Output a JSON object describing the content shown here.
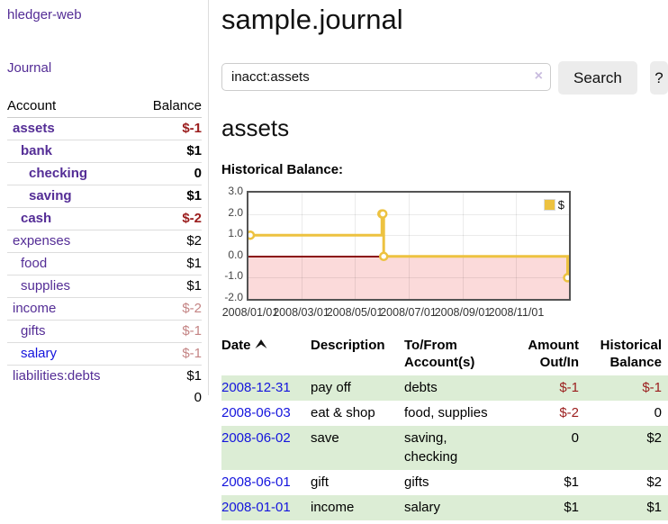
{
  "app": {
    "brand": "hledger-web",
    "nav": {
      "journal": "Journal"
    }
  },
  "colors": {
    "link_purple": "#542d96",
    "link_blue": "#1414dd",
    "negative_strong": "#9b1d1d",
    "negative_soft": "#c48484",
    "row_green": "#dcedd5",
    "series_gold": "#edc240"
  },
  "sidebar": {
    "header": {
      "account": "Account",
      "balance": "Balance"
    },
    "accounts": [
      {
        "name": "assets",
        "balance": "$-1",
        "depth": 0,
        "bold": true,
        "neg": "strong"
      },
      {
        "name": "bank",
        "balance": "$1",
        "depth": 1,
        "bold": true,
        "neg": "none"
      },
      {
        "name": "checking",
        "balance": "0",
        "depth": 2,
        "bold": true,
        "neg": "none"
      },
      {
        "name": "saving",
        "balance": "$1",
        "depth": 2,
        "bold": true,
        "neg": "none"
      },
      {
        "name": "cash",
        "balance": "$-2",
        "depth": 1,
        "bold": true,
        "neg": "strong"
      },
      {
        "name": "expenses",
        "balance": "$2",
        "depth": 0,
        "bold": false,
        "neg": "none"
      },
      {
        "name": "food",
        "balance": "$1",
        "depth": 1,
        "bold": false,
        "neg": "none"
      },
      {
        "name": "supplies",
        "balance": "$1",
        "depth": 1,
        "bold": false,
        "neg": "none"
      },
      {
        "name": "income",
        "balance": "$-2",
        "depth": 0,
        "bold": false,
        "neg": "soft"
      },
      {
        "name": "gifts",
        "balance": "$-1",
        "depth": 1,
        "bold": false,
        "neg": "soft"
      },
      {
        "name": "salary",
        "balance": "$-1",
        "depth": 1,
        "bold": false,
        "neg": "soft",
        "link": "blue"
      },
      {
        "name": "liabilities:debts",
        "balance": "$1",
        "depth": 0,
        "bold": false,
        "neg": "none"
      }
    ],
    "total": "0"
  },
  "header": {
    "title": "sample.journal"
  },
  "search": {
    "value": "inacct:assets",
    "clear_icon": "×",
    "button_label": "Search",
    "help_label": "?"
  },
  "account_page": {
    "title": "assets",
    "chart_label": "Historical Balance:"
  },
  "chart_data": {
    "type": "line",
    "step": true,
    "title": "Historical Balance:",
    "series": [
      {
        "name": "$",
        "color": "#edc240",
        "points": [
          {
            "date": "2008-01-01",
            "value": 1
          },
          {
            "date": "2008-06-01",
            "value": 2
          },
          {
            "date": "2008-06-02",
            "value": 2
          },
          {
            "date": "2008-06-03",
            "value": 0
          },
          {
            "date": "2008-12-31",
            "value": -1
          }
        ]
      }
    ],
    "x_range": [
      "2008-01-01",
      "2008-12-31"
    ],
    "x_ticks": [
      "2008/01/01",
      "2008/03/01",
      "2008/05/01",
      "2008/07/01",
      "2008/09/01",
      "2008/11/01"
    ],
    "y_ticks": [
      "3.0",
      "2.0",
      "1.0",
      "0.0",
      "-1.0",
      "-2.0"
    ],
    "ylim": [
      -2,
      3
    ],
    "grid": true,
    "legend_position": "top-right",
    "negative_region": {
      "fill": "#fbdada",
      "zero_line_color": "#8b1010"
    },
    "border_color": "#545454"
  },
  "register": {
    "headers": [
      "Date",
      "Description",
      "To/From Account(s)",
      "Amount Out/In",
      "Historical Balance"
    ],
    "sort": {
      "column": "Date",
      "direction": "asc"
    },
    "rows": [
      {
        "date": "2008-12-31",
        "description": "pay off",
        "accounts": "debts",
        "amount": "$-1",
        "balance": "$-1"
      },
      {
        "date": "2008-06-03",
        "description": "eat & shop",
        "accounts": "food, supplies",
        "amount": "$-2",
        "balance": "0"
      },
      {
        "date": "2008-06-02",
        "description": "save",
        "accounts": "saving, checking",
        "amount": "0",
        "balance": "$2"
      },
      {
        "date": "2008-06-01",
        "description": "gift",
        "accounts": "gifts",
        "amount": "$1",
        "balance": "$2"
      },
      {
        "date": "2008-01-01",
        "description": "income",
        "accounts": "salary",
        "amount": "$1",
        "balance": "$1"
      }
    ]
  }
}
